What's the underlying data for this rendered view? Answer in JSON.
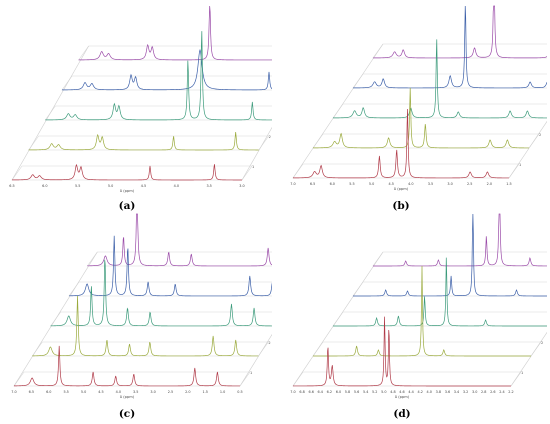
{
  "figure": {
    "panels": [
      {
        "label": "(a)",
        "x_axis_label": "δ (ppm)",
        "x_ticks": [
          "6.5",
          "6.0",
          "5.5",
          "5.0",
          "4.5",
          "4.0",
          "3.5",
          "3.0"
        ],
        "trace_labels": [
          "1",
          "2",
          "3",
          "4",
          "5"
        ],
        "colors": [
          "#b03a48",
          "#9aaa3c",
          "#3a9a7a",
          "#3a5ea8",
          "#9a4aa8"
        ]
      },
      {
        "label": "(b)",
        "x_axis_label": "δ (ppm)",
        "x_ticks": [
          "7.0",
          "6.5",
          "6.0",
          "5.5",
          "5.0",
          "4.5",
          "4.0",
          "3.5",
          "3.0",
          "2.5",
          "2.0",
          "1.5"
        ],
        "trace_labels": [
          "1",
          "2",
          "3",
          "4",
          "5"
        ],
        "colors": [
          "#b03a48",
          "#9aaa3c",
          "#3a9a7a",
          "#3a5ea8",
          "#9a4aa8"
        ]
      },
      {
        "label": "(c)",
        "x_axis_label": "δ (ppm)",
        "x_ticks": [
          "7.0",
          "6.5",
          "6.0",
          "5.5",
          "5.0",
          "4.5",
          "4.0",
          "3.5",
          "3.0",
          "2.5",
          "2.0",
          "1.5",
          "1.0",
          "0.5"
        ],
        "trace_labels": [
          "1",
          "2",
          "3",
          "4",
          "5"
        ],
        "colors": [
          "#b03a48",
          "#9aaa3c",
          "#3a9a7a",
          "#3a5ea8",
          "#9a4aa8"
        ]
      },
      {
        "label": "(d)",
        "x_axis_label": "δ (ppm)",
        "x_ticks": [
          "7.0",
          "6.8",
          "6.6",
          "6.4",
          "6.2",
          "6.0",
          "5.8",
          "5.6",
          "5.4",
          "5.2",
          "5.0",
          "4.8",
          "4.6",
          "4.4",
          "4.2",
          "4.0",
          "3.8",
          "3.6",
          "3.4",
          "3.2",
          "3.0",
          "2.8",
          "2.6",
          "2.4",
          "2.2"
        ],
        "trace_labels": [
          "1",
          "2",
          "3",
          "4",
          "5"
        ],
        "colors": [
          "#b03a48",
          "#9aaa3c",
          "#3a9a7a",
          "#3a5ea8",
          "#9a4aa8"
        ]
      }
    ]
  }
}
